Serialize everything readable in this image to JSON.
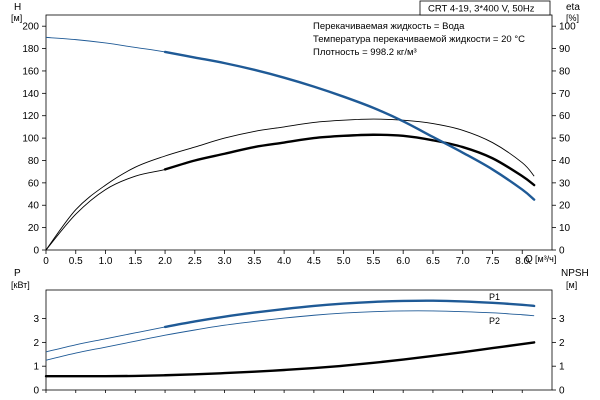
{
  "chart_data": [
    {
      "type": "line",
      "title": "CRT 4-19, 3*400 V, 50Hz",
      "notes": [
        "Перекачиваемая жидкость = Вода",
        "Температура перекачиваемой жидкости = 20 °C",
        "Плотность = 998.2 кг/м³"
      ],
      "xlabel": "Q",
      "xunit": "[м³/ч]",
      "xlim": [
        0,
        8.5
      ],
      "xticks": [
        "0",
        "0.5",
        "1.0",
        "1.5",
        "2.0",
        "2.5",
        "3.0",
        "3.5",
        "4.0",
        "4.5",
        "5.0",
        "5.5",
        "6.0",
        "6.5",
        "7.0",
        "7.5",
        "8.0"
      ],
      "ylabel_left": "H",
      "yunit_left": "[м]",
      "ylim_left": [
        0,
        210
      ],
      "yticks_left": [
        "0",
        "20",
        "40",
        "60",
        "80",
        "100",
        "120",
        "140",
        "160",
        "180",
        "200"
      ],
      "ylabel_right": "eta",
      "yunit_right": "[%]",
      "ylim_right": [
        0,
        105
      ],
      "yticks_right": [
        "0",
        "10",
        "20",
        "30",
        "40",
        "50",
        "60",
        "70",
        "80",
        "90",
        "100"
      ],
      "grid": false,
      "series": [
        {
          "role": "H",
          "axis": "left",
          "color": "#1f5a96",
          "x": [
            0,
            0.5,
            1,
            1.5,
            2,
            2.5,
            3,
            3.5,
            4,
            4.5,
            5,
            5.5,
            6,
            6.5,
            7,
            7.5,
            8,
            8.2
          ],
          "y": [
            190,
            188,
            185,
            181,
            177,
            172,
            167,
            161,
            154,
            146,
            137,
            127,
            115,
            101,
            87,
            72,
            54,
            45
          ],
          "bold_from": 2.0,
          "bold_to": 8.2
        },
        {
          "role": "eta_1",
          "axis": "right",
          "color": "#000000",
          "x": [
            0,
            0.5,
            1,
            1.5,
            2,
            2.5,
            3,
            3.5,
            4,
            4.5,
            5,
            5.5,
            6,
            6.5,
            7,
            7.5,
            8,
            8.2
          ],
          "y": [
            0,
            18,
            29,
            37,
            42,
            46,
            50,
            53,
            55,
            57,
            58,
            58.5,
            58,
            56.5,
            53.5,
            48,
            39,
            33
          ],
          "bold_from": null,
          "bold_to": null
        },
        {
          "role": "eta_2",
          "axis": "right",
          "color": "#000000",
          "x": [
            0,
            0.5,
            1,
            1.5,
            2,
            2.5,
            3,
            3.5,
            4,
            4.5,
            5,
            5.5,
            6,
            6.5,
            7,
            7.5,
            8,
            8.2
          ],
          "y": [
            0,
            16,
            27,
            33,
            36,
            40,
            43,
            46,
            48,
            50,
            51,
            51.5,
            51,
            49,
            46,
            41,
            33,
            29
          ],
          "bold_from": 2.0,
          "bold_to": 8.2
        }
      ]
    },
    {
      "type": "line",
      "xlim": [
        0,
        8.5
      ],
      "ylabel_left": "P",
      "yunit_left": "[кВт]",
      "ylim_left": [
        0,
        4.2
      ],
      "yticks_left": [
        "0",
        "1",
        "2",
        "3"
      ],
      "ylabel_right": "NPSH",
      "yunit_right": "[м]",
      "ylim_right": [
        0,
        4.2
      ],
      "yticks_right": [
        "0",
        "1",
        "2",
        "3"
      ],
      "grid": false,
      "series": [
        {
          "name": "P1",
          "axis": "left",
          "color": "#1f5a96",
          "x": [
            0,
            0.5,
            1,
            1.5,
            2,
            2.5,
            3,
            3.5,
            4,
            4.5,
            5,
            5.5,
            6,
            6.5,
            7,
            7.5,
            8,
            8.2
          ],
          "y": [
            1.6,
            1.9,
            2.15,
            2.4,
            2.65,
            2.88,
            3.08,
            3.25,
            3.4,
            3.53,
            3.63,
            3.7,
            3.74,
            3.75,
            3.72,
            3.66,
            3.58,
            3.53
          ],
          "bold_from": 2.0,
          "bold_to": 8.2
        },
        {
          "name": "P2",
          "axis": "left",
          "color": "#1f5a96",
          "x": [
            0,
            0.5,
            1,
            1.5,
            2,
            2.5,
            3,
            3.5,
            4,
            4.5,
            5,
            5.5,
            6,
            6.5,
            7,
            7.5,
            8,
            8.2
          ],
          "y": [
            1.25,
            1.55,
            1.8,
            2.05,
            2.3,
            2.52,
            2.72,
            2.88,
            3.02,
            3.14,
            3.23,
            3.29,
            3.32,
            3.32,
            3.29,
            3.24,
            3.16,
            3.12
          ],
          "bold_from": null,
          "bold_to": null
        },
        {
          "role": "NPSH",
          "axis": "right",
          "color": "#000000",
          "x": [
            0,
            0.5,
            1,
            1.5,
            2,
            2.5,
            3,
            3.5,
            4,
            4.5,
            5,
            5.5,
            6,
            6.5,
            7,
            7.5,
            8,
            8.2
          ],
          "y": [
            0.58,
            0.58,
            0.58,
            0.59,
            0.62,
            0.66,
            0.71,
            0.77,
            0.84,
            0.92,
            1.02,
            1.14,
            1.28,
            1.43,
            1.59,
            1.76,
            1.93,
            2.0
          ],
          "bold_from": 0,
          "bold_to": 8.2
        }
      ]
    }
  ]
}
